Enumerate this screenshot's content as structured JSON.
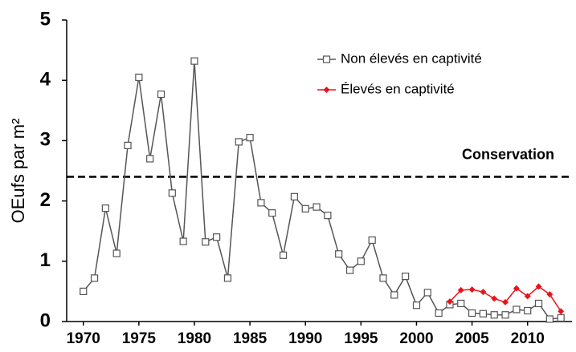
{
  "chart_data": {
    "type": "line",
    "y_label": "OEufs par m²",
    "x": [
      1970,
      1971,
      1972,
      1973,
      1974,
      1975,
      1976,
      1977,
      1978,
      1979,
      1980,
      1981,
      1982,
      1983,
      1984,
      1985,
      1986,
      1987,
      1988,
      1989,
      1990,
      1991,
      1992,
      1993,
      1994,
      1995,
      1996,
      1997,
      1998,
      1999,
      2000,
      2001,
      2002,
      2003,
      2004,
      2005,
      2006,
      2007,
      2008,
      2009,
      2010,
      2011,
      2012,
      2013
    ],
    "series": [
      {
        "name": "Non élevés en captivité",
        "color": "#555555",
        "marker": "square",
        "values": [
          0.5,
          0.72,
          1.88,
          1.13,
          2.92,
          4.05,
          2.7,
          3.77,
          2.13,
          1.33,
          4.32,
          1.32,
          1.4,
          0.72,
          2.98,
          3.05,
          1.97,
          1.8,
          1.1,
          2.07,
          1.87,
          1.9,
          1.76,
          1.12,
          0.85,
          1.0,
          1.35,
          0.72,
          0.44,
          0.75,
          0.27,
          0.48,
          0.14,
          0.28,
          0.3,
          0.14,
          0.13,
          0.11,
          0.11,
          0.2,
          0.18,
          0.3,
          0.04,
          0.06
        ]
      },
      {
        "name": "Élevés en captivité",
        "color": "#e8141b",
        "marker": "diamond",
        "values": [
          null,
          null,
          null,
          null,
          null,
          null,
          null,
          null,
          null,
          null,
          null,
          null,
          null,
          null,
          null,
          null,
          null,
          null,
          null,
          null,
          null,
          null,
          null,
          null,
          null,
          null,
          null,
          null,
          null,
          null,
          null,
          null,
          null,
          0.33,
          0.52,
          0.53,
          0.49,
          0.38,
          0.32,
          0.55,
          0.42,
          0.58,
          0.45,
          0.17
        ]
      }
    ],
    "reference_line": {
      "label": "Conservation",
      "value": 2.4
    },
    "xlim": [
      1968.5,
      2014
    ],
    "xticks": [
      1970,
      1975,
      1980,
      1985,
      1990,
      1995,
      2000,
      2005,
      2010
    ],
    "ylim": [
      0,
      5
    ],
    "yticks": [
      0,
      1,
      2,
      3,
      4,
      5
    ],
    "legend": "top-right"
  }
}
